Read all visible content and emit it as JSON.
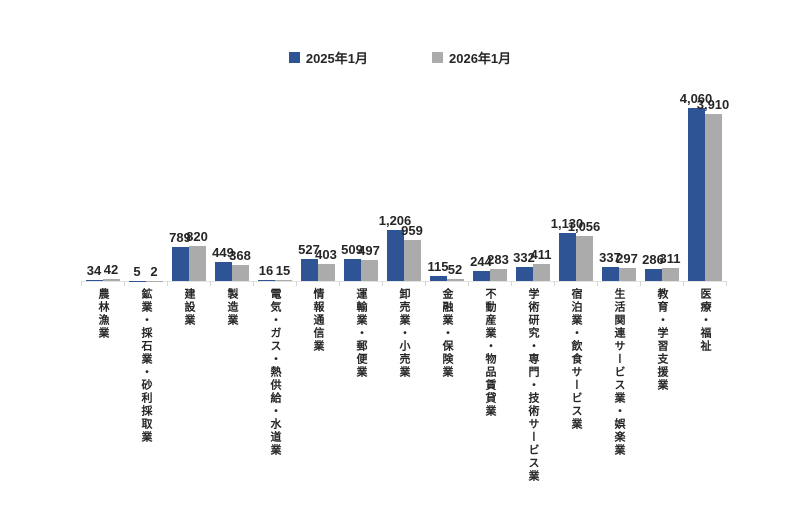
{
  "colors": {
    "series_2025": "#2F5496",
    "series_2026": "#ABABAB",
    "label_text": "#262626",
    "axis_line": "#e3e3e3",
    "background": "#ffffff"
  },
  "chart_data": {
    "type": "bar",
    "title": "",
    "xlabel": "",
    "ylabel": "",
    "ylim": [
      0,
      4060
    ],
    "grid": false,
    "legend_position": "top-center",
    "value_labels": "outside-end",
    "category_label_orientation": "vertical",
    "categories": [
      "農林漁業",
      "鉱業・採石業・砂利採取業",
      "建設業",
      "製造業",
      "電気・ガス・熱供給・水道業",
      "情報通信業",
      "運輸業・郵便業",
      "卸売業・小売業",
      "金融業・保険業",
      "不動産業・物品賃貸業",
      "学術研究・専門・技術サービス業",
      "宿泊業・飲食サービス業",
      "生活関連サービス業・娯楽業",
      "教育・学習支援業",
      "医療・福祉"
    ],
    "series": [
      {
        "name": "2025年1月",
        "color": "#2F5496",
        "values": [
          34,
          5,
          789,
          449,
          16,
          527,
          509,
          1206,
          115,
          244,
          332,
          1130,
          337,
          286,
          4060
        ]
      },
      {
        "name": "2026年1月",
        "color": "#ABABAB",
        "values": [
          42,
          2,
          820,
          368,
          15,
          403,
          497,
          959,
          52,
          283,
          411,
          1056,
          297,
          311,
          3910
        ]
      }
    ]
  }
}
